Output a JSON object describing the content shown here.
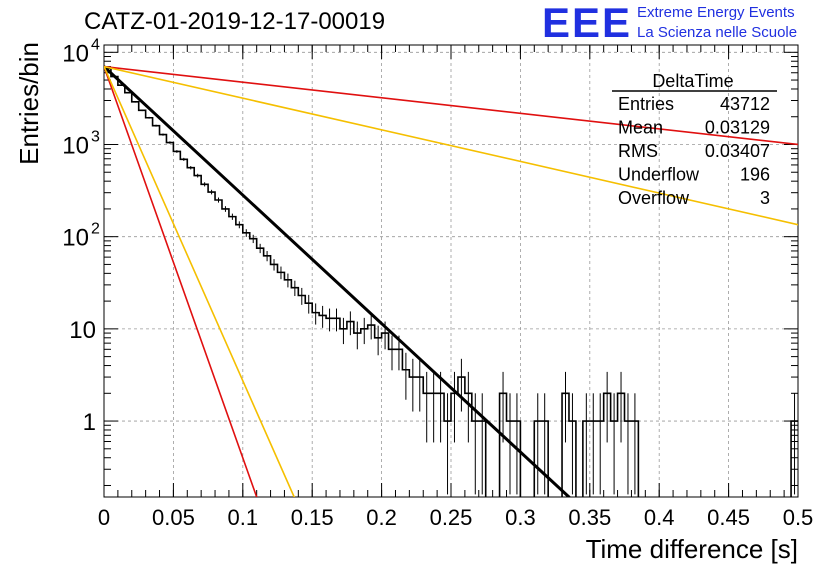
{
  "title": "CATZ-01-2019-12-17-00019",
  "logo": {
    "mark": "EEE",
    "line1": "Extreme Energy Events",
    "line2": "La Scienza nelle Scuole"
  },
  "colors": {
    "histogram": "#000000",
    "fit_line": "#000000",
    "red_lines": "#e01010",
    "yellow_lines": "#f5bf00",
    "grid": "#999999"
  },
  "stats_box": {
    "title": "DeltaTime",
    "rows": [
      {
        "label": "Entries",
        "value": "43712"
      },
      {
        "label": "Mean",
        "value": "0.03129"
      },
      {
        "label": "RMS",
        "value": "0.03407"
      },
      {
        "label": "Underflow",
        "value": "196"
      },
      {
        "label": "Overflow",
        "value": "3"
      }
    ]
  },
  "chart_data": {
    "type": "line",
    "title": "CATZ-01-2019-12-17-00019",
    "xlabel": "Time difference [s]",
    "ylabel": "Entries/bin",
    "xlim": [
      0,
      0.5
    ],
    "ylim": [
      0.15,
      12000
    ],
    "yscale": "log",
    "grid": true,
    "x_ticks": [
      {
        "v": 0,
        "label": "0"
      },
      {
        "v": 0.05,
        "label": "0.05"
      },
      {
        "v": 0.1,
        "label": "0.1"
      },
      {
        "v": 0.15,
        "label": "0.15"
      },
      {
        "v": 0.2,
        "label": "0.2"
      },
      {
        "v": 0.25,
        "label": "0.25"
      },
      {
        "v": 0.3,
        "label": "0.3"
      },
      {
        "v": 0.35,
        "label": "0.35"
      },
      {
        "v": 0.4,
        "label": "0.4"
      },
      {
        "v": 0.45,
        "label": "0.45"
      },
      {
        "v": 0.5,
        "label": "0.5"
      }
    ],
    "y_ticks": [
      {
        "v": 1,
        "base": "1",
        "exp": ""
      },
      {
        "v": 10,
        "base": "10",
        "exp": ""
      },
      {
        "v": 100,
        "base": "10",
        "exp": "2"
      },
      {
        "v": 1000,
        "base": "10",
        "exp": "3"
      },
      {
        "v": 10000,
        "base": "10",
        "exp": "4"
      }
    ],
    "histogram": {
      "bin_width": 0.005,
      "x0": 0,
      "values": [
        6700,
        5450,
        4400,
        3650,
        2900,
        2350,
        1950,
        1600,
        1280,
        1050,
        840,
        690,
        560,
        460,
        370,
        305,
        250,
        200,
        165,
        135,
        110,
        95,
        75,
        62,
        50,
        41,
        34,
        28,
        23,
        19,
        15,
        14,
        13,
        13,
        10,
        12,
        9,
        10,
        11,
        8,
        9,
        6,
        6,
        3.6,
        3,
        3,
        2,
        2,
        2,
        1,
        2,
        3,
        2,
        1,
        1,
        0,
        0,
        2,
        1,
        1,
        0,
        0,
        1,
        1,
        0,
        0,
        2,
        1,
        0,
        1,
        1,
        1,
        2,
        1,
        2,
        1,
        1,
        0,
        0,
        0,
        0,
        0,
        0,
        0,
        0,
        0,
        0,
        0,
        0,
        0,
        0,
        0,
        0,
        0,
        0,
        0,
        0,
        0,
        0,
        1
      ]
    },
    "series": [
      {
        "color": "#000000",
        "width": 3,
        "x": [
          0,
          0.335
        ],
        "y": [
          7000,
          0.15
        ]
      },
      {
        "color": "#e01010",
        "width": 1.6,
        "x": [
          0,
          0.5
        ],
        "y": [
          7000,
          1000
        ]
      },
      {
        "color": "#f5bf00",
        "width": 1.6,
        "x": [
          0,
          0.5
        ],
        "y": [
          7000,
          135
        ]
      },
      {
        "color": "#e01010",
        "width": 1.6,
        "x": [
          0,
          0.11
        ],
        "y": [
          7000,
          0.15
        ]
      },
      {
        "color": "#f5bf00",
        "width": 1.6,
        "x": [
          0,
          0.137
        ],
        "y": [
          7000,
          0.15
        ]
      }
    ]
  }
}
